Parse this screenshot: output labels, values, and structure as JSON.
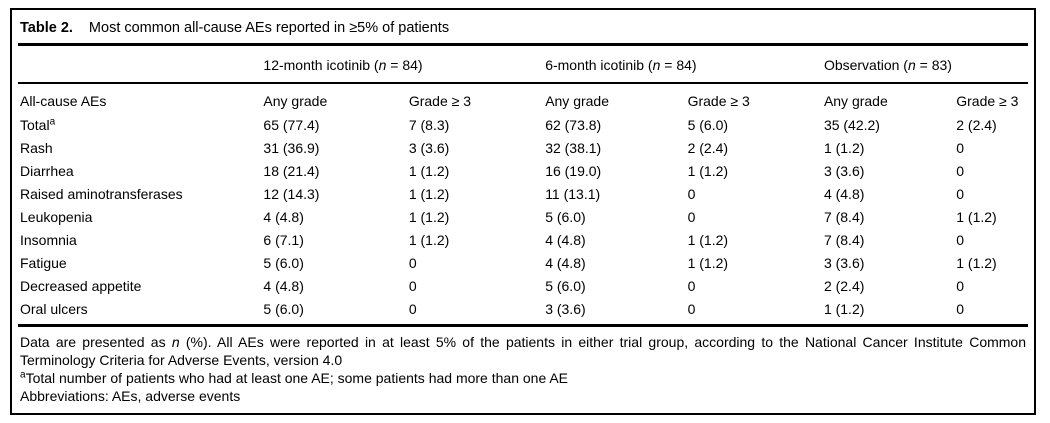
{
  "table": {
    "caption_label": "Table 2.",
    "caption_text": "Most common all-cause AEs reported in ≥5% of patients",
    "stub_header": "All-cause AEs",
    "groups": [
      {
        "pre": "12-month icotinib (",
        "n": "n",
        "post": " = 84)"
      },
      {
        "pre": "6-month icotinib (",
        "n": "n",
        "post": " = 84)"
      },
      {
        "pre": "Observation (",
        "n": "n",
        "post": " = 83)"
      }
    ],
    "subheaders": [
      "Any grade",
      "Grade ≥ 3"
    ],
    "rows": [
      {
        "label": "Total",
        "sup": "a",
        "values": [
          "65 (77.4)",
          "7 (8.3)",
          "62 (73.8)",
          "5 (6.0)",
          "35 (42.2)",
          "2 (2.4)"
        ]
      },
      {
        "label": "Rash",
        "sup": "",
        "values": [
          "31 (36.9)",
          "3 (3.6)",
          "32 (38.1)",
          "2 (2.4)",
          "1 (1.2)",
          "0"
        ]
      },
      {
        "label": "Diarrhea",
        "sup": "",
        "values": [
          "18 (21.4)",
          "1 (1.2)",
          "16 (19.0)",
          "1 (1.2)",
          "3 (3.6)",
          "0"
        ]
      },
      {
        "label": "Raised aminotransferases",
        "sup": "",
        "values": [
          "12 (14.3)",
          "1 (1.2)",
          "11 (13.1)",
          "0",
          "4 (4.8)",
          "0"
        ]
      },
      {
        "label": "Leukopenia",
        "sup": "",
        "values": [
          "4 (4.8)",
          "1 (1.2)",
          "5 (6.0)",
          "0",
          "7 (8.4)",
          "1 (1.2)"
        ]
      },
      {
        "label": "Insomnia",
        "sup": "",
        "values": [
          "6 (7.1)",
          "1 (1.2)",
          "4 (4.8)",
          "1 (1.2)",
          "7 (8.4)",
          "0"
        ]
      },
      {
        "label": "Fatigue",
        "sup": "",
        "values": [
          "5 (6.0)",
          "0",
          "4 (4.8)",
          "1 (1.2)",
          "3 (3.6)",
          "1 (1.2)"
        ]
      },
      {
        "label": "Decreased appetite",
        "sup": "",
        "values": [
          "4 (4.8)",
          "0",
          "5 (6.0)",
          "0",
          "2 (2.4)",
          "0"
        ]
      },
      {
        "label": "Oral ulcers",
        "sup": "",
        "values": [
          "5 (6.0)",
          "0",
          "3 (3.6)",
          "0",
          "1 (1.2)",
          "0"
        ]
      }
    ]
  },
  "footnotes": {
    "data_note_pre": "Data are presented as ",
    "data_note_n": "n",
    "data_note_post": " (%). All AEs were reported in at least 5% of the patients in either trial group, according to the National Cancer Institute Common Terminology Criteria for Adverse Events, version 4.0",
    "total_note_sup": "a",
    "total_note": "Total number of patients who had at least one AE; some patients had more than one AE",
    "abbreviations": "Abbreviations: AEs, adverse events"
  },
  "colors": {
    "text": "#000000",
    "border": "#000000",
    "background": "#ffffff"
  }
}
